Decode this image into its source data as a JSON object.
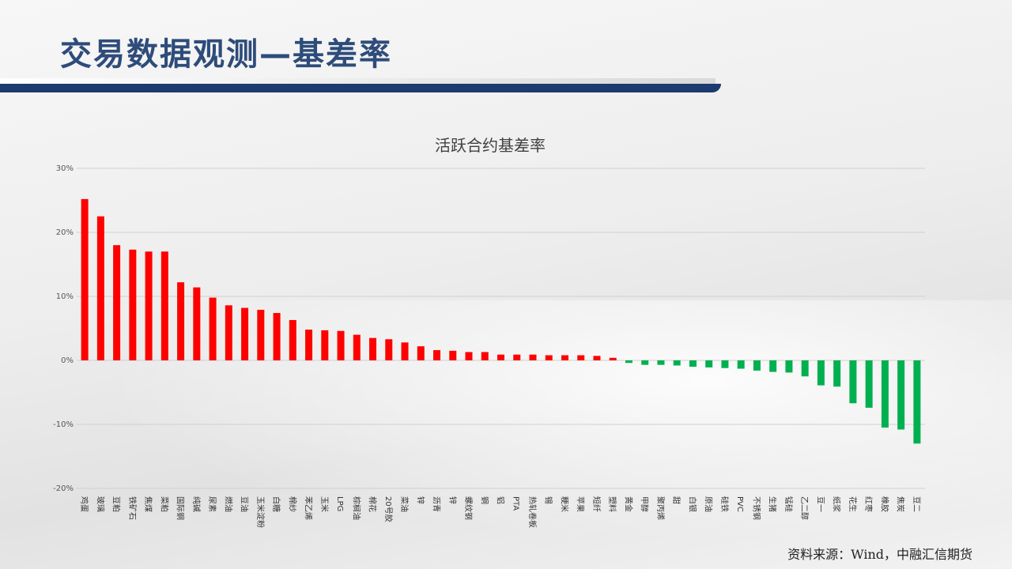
{
  "page": {
    "title": "交易数据观测—基差率",
    "source": "资料来源：Wind，中融汇信期货"
  },
  "colors": {
    "positive": "#ff0000",
    "negative": "#00b050",
    "title": "#2e4c7a",
    "title_bar": "#1c3b6e",
    "grid": "#d0d0d0"
  },
  "chart_data": {
    "type": "bar",
    "title": "活跃合约基差率",
    "xlabel": "",
    "ylabel": "",
    "ylim": [
      -20,
      30
    ],
    "yticks": [
      30,
      20,
      10,
      0,
      -10,
      -20
    ],
    "ytick_labels": [
      "30%",
      "20%",
      "10%",
      "0%",
      "-10%",
      "-20%"
    ],
    "grid": true,
    "legend": "none",
    "categories": [
      "鸡蛋",
      "玻璃",
      "豆粕",
      "铁矿石",
      "焦煤",
      "菜粕",
      "国际铜",
      "纯碱",
      "尿素",
      "燃油",
      "豆油",
      "玉米淀粉",
      "白糖",
      "棉纱",
      "苯乙烯",
      "玉米",
      "LPG",
      "棕榈油",
      "棉花",
      "20号胶",
      "菜油",
      "锌",
      "沥青",
      "锌",
      "螺纹钢",
      "铜",
      "铝",
      "PTA",
      "热轧卷板",
      "锡",
      "粳米",
      "苹果",
      "短纤",
      "塑料",
      "黄金",
      "甲醇",
      "聚丙烯",
      "甜",
      "白银",
      "原油",
      "硅铁",
      "PVC",
      "不锈钢",
      "生猪",
      "锰硅",
      "乙二醇",
      "豆一",
      "纸浆",
      "花生",
      "红枣",
      "橡胶",
      "焦炭",
      "豆二"
    ],
    "values": [
      25.2,
      22.5,
      18.0,
      17.3,
      17.0,
      17.0,
      12.2,
      11.4,
      9.8,
      8.6,
      8.2,
      7.9,
      7.4,
      6.3,
      4.8,
      4.7,
      4.6,
      4.0,
      3.5,
      3.3,
      2.8,
      2.2,
      1.6,
      1.5,
      1.3,
      1.3,
      0.9,
      0.9,
      0.9,
      0.8,
      0.8,
      0.8,
      0.7,
      0.4,
      -0.4,
      -0.7,
      -0.7,
      -0.8,
      -1.0,
      -1.1,
      -1.2,
      -1.3,
      -1.6,
      -1.8,
      -1.9,
      -2.5,
      -3.9,
      -4.1,
      -6.7,
      -7.4,
      -10.5,
      -10.8,
      -13.0
    ]
  }
}
